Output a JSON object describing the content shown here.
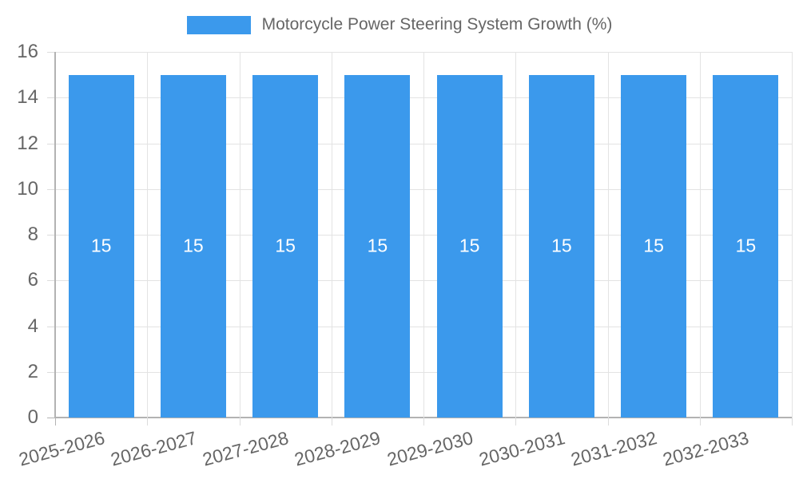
{
  "chart_data": {
    "type": "bar",
    "title": "Motorcycle Power Steering System Growth (%)",
    "legend": {
      "label": "Motorcycle Power Steering System Growth (%)",
      "position": "top"
    },
    "categories": [
      "2025-2026",
      "2026-2027",
      "2027-2028",
      "2028-2029",
      "2029-2030",
      "2030-2031",
      "2031-2032",
      "2032-2033"
    ],
    "values": [
      15,
      15,
      15,
      15,
      15,
      15,
      15,
      15
    ],
    "value_labels": [
      "15",
      "15",
      "15",
      "15",
      "15",
      "15",
      "15",
      "15"
    ],
    "xlabel": "",
    "ylabel": "",
    "ylim": [
      0,
      16
    ],
    "yticks": [
      0,
      2,
      4,
      6,
      8,
      10,
      12,
      14,
      16
    ],
    "grid": true,
    "x_label_rotation_deg": -15,
    "colors": {
      "bar": "#3B99EC",
      "axis_text": "#666666",
      "grid_line": "#e3e3e3",
      "zero_line": "#b3b3b3",
      "value_label": "#ffffff",
      "background": "#ffffff"
    }
  }
}
